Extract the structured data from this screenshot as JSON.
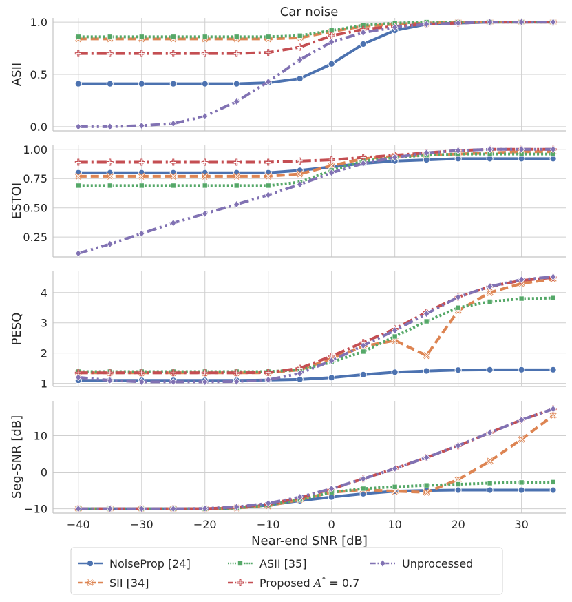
{
  "figure": {
    "title": "Car noise"
  },
  "chart_data": {
    "type": "line",
    "title": "Car noise",
    "xlabel": "Near-end SNR [dB]",
    "x": [
      -40,
      -35,
      -30,
      -25,
      -20,
      -15,
      -10,
      -5,
      0,
      5,
      10,
      15,
      20,
      25,
      30,
      35
    ],
    "xlim": [
      -44,
      37
    ],
    "xticks": [
      -40,
      -30,
      -20,
      -10,
      0,
      10,
      20,
      30
    ],
    "xtick_labels": [
      "−40",
      "−30",
      "−20",
      "−10",
      "0",
      "10",
      "20",
      "30"
    ],
    "series_styles": [
      {
        "name": "NoiseProp [24]",
        "color": "#4c72b0",
        "dash": "",
        "marker": "circle"
      },
      {
        "name": "SII [34]",
        "color": "#dd8452",
        "dash": "12 6",
        "marker": "x"
      },
      {
        "name": "ASII [35]",
        "color": "#55a868",
        "dash": "3 3",
        "marker": "square"
      },
      {
        "name": "Proposed A* = 0.7",
        "color": "#c44e52",
        "dash": "14 5 3 5",
        "marker": "plus"
      },
      {
        "name": "Unprocessed",
        "color": "#8172b3",
        "dash": "14 5 3 5 3 5",
        "marker": "diamond"
      }
    ],
    "legend": {
      "placement": "bottom",
      "labels": [
        "NoiseProp [24]",
        "SII [34]",
        "ASII [35]",
        "Proposed ",
        "Unprocessed"
      ],
      "proposed_math": {
        "symbol": "A",
        "sup": "*",
        "rest": " = 0.7"
      }
    },
    "panels": [
      {
        "ylabel": "ASII",
        "ylim": [
          -0.04,
          1.04
        ],
        "yticks": [
          0.0,
          0.5,
          1.0
        ],
        "ytick_labels": [
          "0.0",
          "0.5",
          "1.0"
        ],
        "series": [
          {
            "name": "NoiseProp [24]",
            "values": [
              0.41,
              0.41,
              0.41,
              0.41,
              0.41,
              0.41,
              0.42,
              0.46,
              0.6,
              0.79,
              0.92,
              0.98,
              0.99,
              1.0,
              1.0,
              1.0
            ]
          },
          {
            "name": "SII [34]",
            "values": [
              0.84,
              0.84,
              0.84,
              0.84,
              0.84,
              0.84,
              0.84,
              0.85,
              0.91,
              0.96,
              0.98,
              0.99,
              1.0,
              1.0,
              1.0,
              1.0
            ]
          },
          {
            "name": "ASII [35]",
            "values": [
              0.86,
              0.86,
              0.86,
              0.86,
              0.86,
              0.86,
              0.86,
              0.87,
              0.92,
              0.97,
              0.99,
              1.0,
              1.0,
              1.0,
              1.0,
              1.0
            ]
          },
          {
            "name": "Proposed A* = 0.7",
            "values": [
              0.7,
              0.7,
              0.7,
              0.7,
              0.7,
              0.7,
              0.71,
              0.76,
              0.87,
              0.93,
              0.96,
              0.98,
              0.99,
              1.0,
              1.0,
              1.0
            ]
          },
          {
            "name": "Unprocessed",
            "values": [
              0.0,
              0.0,
              0.01,
              0.03,
              0.1,
              0.24,
              0.43,
              0.64,
              0.81,
              0.9,
              0.95,
              0.98,
              0.99,
              1.0,
              1.0,
              1.0
            ]
          }
        ]
      },
      {
        "ylabel": "ESTOI",
        "ylim": [
          0.08,
          1.04
        ],
        "yticks": [
          0.25,
          0.5,
          0.75,
          1.0
        ],
        "ytick_labels": [
          "0.25",
          "0.50",
          "0.75",
          "1.00"
        ],
        "series": [
          {
            "name": "NoiseProp [24]",
            "values": [
              0.8,
              0.8,
              0.8,
              0.8,
              0.8,
              0.8,
              0.8,
              0.82,
              0.85,
              0.88,
              0.9,
              0.91,
              0.92,
              0.92,
              0.92,
              0.92
            ]
          },
          {
            "name": "SII [34]",
            "values": [
              0.77,
              0.77,
              0.77,
              0.77,
              0.77,
              0.77,
              0.77,
              0.79,
              0.86,
              0.92,
              0.94,
              0.95,
              0.96,
              0.97,
              0.98,
              0.98
            ]
          },
          {
            "name": "ASII [35]",
            "values": [
              0.69,
              0.69,
              0.69,
              0.69,
              0.69,
              0.69,
              0.69,
              0.72,
              0.82,
              0.9,
              0.93,
              0.95,
              0.96,
              0.96,
              0.96,
              0.96
            ]
          },
          {
            "name": "Proposed A* = 0.7",
            "values": [
              0.89,
              0.89,
              0.89,
              0.89,
              0.89,
              0.89,
              0.89,
              0.9,
              0.91,
              0.93,
              0.95,
              0.97,
              0.99,
              1.0,
              1.0,
              1.0
            ]
          },
          {
            "name": "Unprocessed",
            "values": [
              0.11,
              0.19,
              0.28,
              0.37,
              0.45,
              0.53,
              0.61,
              0.7,
              0.8,
              0.88,
              0.93,
              0.97,
              0.99,
              1.0,
              1.0,
              1.0
            ]
          }
        ]
      },
      {
        "ylabel": "PESQ",
        "ylim": [
          0.9,
          4.7
        ],
        "yticks": [
          1,
          2,
          3,
          4
        ],
        "ytick_labels": [
          "1",
          "2",
          "3",
          "4"
        ],
        "series": [
          {
            "name": "NoiseProp [24]",
            "values": [
              1.1,
              1.1,
              1.1,
              1.1,
              1.1,
              1.1,
              1.11,
              1.13,
              1.19,
              1.29,
              1.37,
              1.41,
              1.44,
              1.45,
              1.45,
              1.45
            ]
          },
          {
            "name": "SII [34]",
            "values": [
              1.35,
              1.35,
              1.35,
              1.35,
              1.35,
              1.35,
              1.35,
              1.45,
              1.82,
              2.22,
              2.42,
              1.92,
              3.4,
              4.0,
              4.3,
              4.45
            ]
          },
          {
            "name": "ASII [35]",
            "values": [
              1.39,
              1.39,
              1.39,
              1.39,
              1.39,
              1.39,
              1.39,
              1.45,
              1.7,
              2.05,
              2.55,
              3.05,
              3.5,
              3.7,
              3.8,
              3.82
            ]
          },
          {
            "name": "Proposed A* = 0.7",
            "values": [
              1.35,
              1.35,
              1.35,
              1.35,
              1.35,
              1.35,
              1.36,
              1.5,
              1.9,
              2.35,
              2.8,
              3.35,
              3.85,
              4.2,
              4.4,
              4.5
            ]
          },
          {
            "name": "Unprocessed",
            "values": [
              1.2,
              1.1,
              1.05,
              1.05,
              1.05,
              1.06,
              1.12,
              1.33,
              1.75,
              2.25,
              2.75,
              3.3,
              3.85,
              4.2,
              4.43,
              4.52
            ]
          }
        ]
      },
      {
        "ylabel": "Seg-SNR [dB]",
        "ylim": [
          -11.2,
          19.5
        ],
        "yticks": [
          -10,
          0,
          10
        ],
        "ytick_labels": [
          "−10",
          "0",
          "10"
        ],
        "series": [
          {
            "name": "NoiseProp [24]",
            "values": [
              -10.0,
              -10.0,
              -10.0,
              -10.0,
              -10.0,
              -9.8,
              -9.0,
              -7.8,
              -6.8,
              -5.9,
              -5.2,
              -5.0,
              -4.9,
              -4.9,
              -4.9,
              -4.9
            ]
          },
          {
            "name": "SII [34]",
            "values": [
              -10.0,
              -10.0,
              -10.0,
              -10.0,
              -10.0,
              -9.8,
              -9.2,
              -7.5,
              -5.5,
              -4.8,
              -5.2,
              -5.5,
              -2.0,
              3.0,
              9.0,
              15.5
            ]
          },
          {
            "name": "ASII [35]",
            "values": [
              -10.0,
              -10.0,
              -10.0,
              -10.0,
              -10.0,
              -9.8,
              -9.0,
              -7.5,
              -5.5,
              -4.5,
              -4.0,
              -3.6,
              -3.3,
              -3.0,
              -2.8,
              -2.7
            ]
          },
          {
            "name": "Proposed A* = 0.7",
            "values": [
              -10.0,
              -10.0,
              -10.0,
              -10.0,
              -10.0,
              -9.6,
              -8.7,
              -7.0,
              -4.6,
              -1.8,
              1.0,
              4.0,
              7.2,
              10.8,
              14.3,
              17.3
            ]
          },
          {
            "name": "Unprocessed",
            "values": [
              -10.0,
              -10.0,
              -10.0,
              -10.0,
              -9.9,
              -9.5,
              -8.5,
              -6.8,
              -4.5,
              -1.8,
              1.0,
              4.0,
              7.3,
              10.8,
              14.3,
              17.3
            ]
          }
        ]
      }
    ]
  }
}
